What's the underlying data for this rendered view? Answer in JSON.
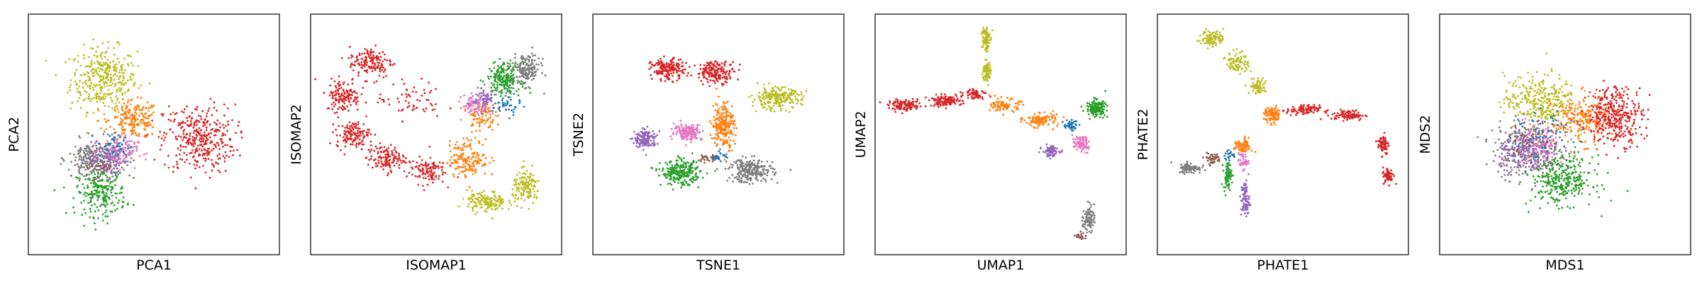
{
  "figure": {
    "panels": [
      {
        "id": "pca",
        "xlabel": "PCA1",
        "ylabel": "PCA2"
      },
      {
        "id": "isomap",
        "xlabel": "ISOMAP1",
        "ylabel": "ISOMAP2"
      },
      {
        "id": "tsne",
        "xlabel": "TSNE1",
        "ylabel": "TSNE2"
      },
      {
        "id": "umap",
        "xlabel": "UMAP1",
        "ylabel": "UMAP2"
      },
      {
        "id": "phate",
        "xlabel": "PHATE1",
        "ylabel": "PHATE2"
      },
      {
        "id": "mds",
        "xlabel": "MDS1",
        "ylabel": "MDS2"
      }
    ]
  },
  "chart_data": [
    {
      "type": "scatter",
      "xlabel": "PCA1",
      "ylabel": "PCA2",
      "xlim": [
        0,
        10
      ],
      "ylim": [
        0,
        10
      ],
      "ticks": "hidden",
      "legend": "none",
      "series": [
        {
          "color": "#bcbd22",
          "clusters": [
            {
              "cx": 3.0,
              "cy": 7.3,
              "sx": 1.2,
              "sy": 1.2,
              "n": 350
            }
          ]
        },
        {
          "color": "#ff7f0e",
          "clusters": [
            {
              "cx": 4.2,
              "cy": 5.6,
              "sx": 0.9,
              "sy": 0.7,
              "n": 200
            }
          ]
        },
        {
          "color": "#d62728",
          "clusters": [
            {
              "cx": 6.8,
              "cy": 4.8,
              "sx": 1.3,
              "sy": 1.3,
              "n": 350
            }
          ]
        },
        {
          "color": "#2ca02c",
          "clusters": [
            {
              "cx": 2.9,
              "cy": 2.6,
              "sx": 0.9,
              "sy": 0.9,
              "n": 230
            }
          ]
        },
        {
          "color": "#7f7f7f",
          "clusters": [
            {
              "cx": 2.6,
              "cy": 4.0,
              "sx": 0.9,
              "sy": 0.7,
              "n": 200
            }
          ]
        },
        {
          "color": "#9467bd",
          "clusters": [
            {
              "cx": 3.2,
              "cy": 4.0,
              "sx": 0.8,
              "sy": 0.7,
              "n": 130
            }
          ]
        },
        {
          "color": "#e377c2",
          "clusters": [
            {
              "cx": 3.6,
              "cy": 4.3,
              "sx": 0.7,
              "sy": 0.6,
              "n": 100
            }
          ]
        },
        {
          "color": "#1f77b4",
          "clusters": [
            {
              "cx": 3.4,
              "cy": 4.5,
              "sx": 0.6,
              "sy": 0.5,
              "n": 40
            }
          ]
        },
        {
          "color": "#8c564b",
          "clusters": [
            {
              "cx": 2.8,
              "cy": 3.7,
              "sx": 0.6,
              "sy": 0.5,
              "n": 40
            }
          ]
        }
      ]
    },
    {
      "type": "scatter",
      "xlabel": "ISOMAP1",
      "ylabel": "ISOMAP2",
      "xlim": [
        0,
        10
      ],
      "ylim": [
        0,
        10
      ],
      "ticks": "hidden",
      "legend": "none",
      "series": [
        {
          "color": "#d62728",
          "clusters": [
            {
              "cx": 2.4,
              "cy": 8.0,
              "sx": 0.8,
              "sy": 0.6,
              "n": 150
            },
            {
              "cx": 1.3,
              "cy": 6.6,
              "sx": 0.6,
              "sy": 0.6,
              "n": 130
            },
            {
              "cx": 1.7,
              "cy": 5.0,
              "sx": 0.6,
              "sy": 0.5,
              "n": 130
            },
            {
              "cx": 3.0,
              "cy": 4.0,
              "sx": 0.7,
              "sy": 0.5,
              "n": 130
            },
            {
              "cx": 4.6,
              "cy": 3.5,
              "sx": 0.7,
              "sy": 0.5,
              "n": 110
            },
            {
              "cx": 4.0,
              "cy": 6.4,
              "sx": 1.2,
              "sy": 0.7,
              "n": 60
            }
          ]
        },
        {
          "color": "#ff7f0e",
          "clusters": [
            {
              "cx": 6.3,
              "cy": 4.0,
              "sx": 0.7,
              "sy": 0.7,
              "n": 160
            },
            {
              "cx": 6.8,
              "cy": 5.8,
              "sx": 0.5,
              "sy": 0.6,
              "n": 90
            }
          ]
        },
        {
          "color": "#bcbd22",
          "clusters": [
            {
              "cx": 7.0,
              "cy": 2.2,
              "sx": 0.7,
              "sy": 0.4,
              "n": 150
            },
            {
              "cx": 8.6,
              "cy": 2.8,
              "sx": 0.5,
              "sy": 0.6,
              "n": 140
            }
          ]
        },
        {
          "color": "#2ca02c",
          "clusters": [
            {
              "cx": 7.7,
              "cy": 7.3,
              "sx": 0.6,
              "sy": 0.6,
              "n": 200
            }
          ]
        },
        {
          "color": "#7f7f7f",
          "clusters": [
            {
              "cx": 8.6,
              "cy": 7.7,
              "sx": 0.5,
              "sy": 0.6,
              "n": 170
            }
          ]
        },
        {
          "color": "#e377c2",
          "clusters": [
            {
              "cx": 6.6,
              "cy": 6.2,
              "sx": 0.5,
              "sy": 0.4,
              "n": 80
            }
          ]
        },
        {
          "color": "#9467bd",
          "clusters": [
            {
              "cx": 6.9,
              "cy": 6.5,
              "sx": 0.4,
              "sy": 0.4,
              "n": 60
            }
          ]
        },
        {
          "color": "#1f77b4",
          "clusters": [
            {
              "cx": 7.8,
              "cy": 6.2,
              "sx": 0.5,
              "sy": 0.4,
              "n": 40
            }
          ]
        }
      ]
    },
    {
      "type": "scatter",
      "xlabel": "TSNE1",
      "ylabel": "TSNE2",
      "xlim": [
        0,
        10
      ],
      "ylim": [
        0,
        10
      ],
      "ticks": "hidden",
      "legend": "none",
      "series": [
        {
          "color": "#d62728",
          "clusters": [
            {
              "cx": 3.0,
              "cy": 7.7,
              "sx": 0.6,
              "sy": 0.4,
              "n": 180
            },
            {
              "cx": 4.9,
              "cy": 7.6,
              "sx": 0.7,
              "sy": 0.4,
              "n": 180
            }
          ]
        },
        {
          "color": "#ff7f0e",
          "clusters": [
            {
              "cx": 5.2,
              "cy": 5.4,
              "sx": 0.4,
              "sy": 0.9,
              "n": 230
            }
          ]
        },
        {
          "color": "#bcbd22",
          "clusters": [
            {
              "cx": 7.3,
              "cy": 6.5,
              "sx": 0.9,
              "sy": 0.4,
              "n": 220
            }
          ]
        },
        {
          "color": "#e377c2",
          "clusters": [
            {
              "cx": 3.8,
              "cy": 5.1,
              "sx": 0.5,
              "sy": 0.3,
              "n": 170
            }
          ]
        },
        {
          "color": "#9467bd",
          "clusters": [
            {
              "cx": 2.1,
              "cy": 4.8,
              "sx": 0.4,
              "sy": 0.35,
              "n": 150
            }
          ]
        },
        {
          "color": "#2ca02c",
          "clusters": [
            {
              "cx": 3.5,
              "cy": 3.4,
              "sx": 0.7,
              "sy": 0.45,
              "n": 260
            }
          ]
        },
        {
          "color": "#7f7f7f",
          "clusters": [
            {
              "cx": 6.3,
              "cy": 3.5,
              "sx": 0.8,
              "sy": 0.45,
              "n": 240
            }
          ]
        },
        {
          "color": "#1f77b4",
          "clusters": [
            {
              "cx": 5.0,
              "cy": 4.1,
              "sx": 0.3,
              "sy": 0.2,
              "n": 30
            }
          ]
        },
        {
          "color": "#8c564b",
          "clusters": [
            {
              "cx": 4.6,
              "cy": 4.0,
              "sx": 0.3,
              "sy": 0.2,
              "n": 20
            }
          ]
        }
      ]
    },
    {
      "type": "scatter",
      "xlabel": "UMAP1",
      "ylabel": "UMAP2",
      "xlim": [
        0,
        10
      ],
      "ylim": [
        0,
        10
      ],
      "ticks": "hidden",
      "legend": "none",
      "series": [
        {
          "color": "#d62728",
          "clusters": [
            {
              "cx": 1.2,
              "cy": 6.2,
              "sx": 0.6,
              "sy": 0.2,
              "n": 120
            },
            {
              "cx": 2.8,
              "cy": 6.4,
              "sx": 0.6,
              "sy": 0.2,
              "n": 120
            },
            {
              "cx": 4.0,
              "cy": 6.7,
              "sx": 0.4,
              "sy": 0.2,
              "n": 60
            }
          ]
        },
        {
          "color": "#bcbd22",
          "clusters": [
            {
              "cx": 4.4,
              "cy": 9.0,
              "sx": 0.15,
              "sy": 0.5,
              "n": 100
            },
            {
              "cx": 4.45,
              "cy": 7.6,
              "sx": 0.15,
              "sy": 0.4,
              "n": 80
            }
          ]
        },
        {
          "color": "#ff7f0e",
          "clusters": [
            {
              "cx": 5.2,
              "cy": 6.2,
              "sx": 0.5,
              "sy": 0.25,
              "n": 90
            },
            {
              "cx": 6.6,
              "cy": 5.6,
              "sx": 0.6,
              "sy": 0.25,
              "n": 110
            }
          ]
        },
        {
          "color": "#2ca02c",
          "clusters": [
            {
              "cx": 8.8,
              "cy": 6.1,
              "sx": 0.35,
              "sy": 0.3,
              "n": 160
            }
          ]
        },
        {
          "color": "#9467bd",
          "clusters": [
            {
              "cx": 7.0,
              "cy": 4.3,
              "sx": 0.3,
              "sy": 0.2,
              "n": 90
            }
          ]
        },
        {
          "color": "#e377c2",
          "clusters": [
            {
              "cx": 8.2,
              "cy": 4.6,
              "sx": 0.3,
              "sy": 0.3,
              "n": 80
            }
          ]
        },
        {
          "color": "#1f77b4",
          "clusters": [
            {
              "cx": 7.8,
              "cy": 5.4,
              "sx": 0.25,
              "sy": 0.2,
              "n": 40
            }
          ]
        },
        {
          "color": "#7f7f7f",
          "clusters": [
            {
              "cx": 8.5,
              "cy": 1.5,
              "sx": 0.2,
              "sy": 0.5,
              "n": 90
            }
          ]
        },
        {
          "color": "#8c564b",
          "clusters": [
            {
              "cx": 8.2,
              "cy": 0.8,
              "sx": 0.2,
              "sy": 0.15,
              "n": 20
            }
          ]
        }
      ]
    },
    {
      "type": "scatter",
      "xlabel": "PHATE1",
      "ylabel": "PHATE2",
      "xlim": [
        0,
        10
      ],
      "ylim": [
        0,
        10
      ],
      "ticks": "hidden",
      "legend": "none",
      "series": [
        {
          "color": "#bcbd22",
          "clusters": [
            {
              "cx": 2.2,
              "cy": 9.0,
              "sx": 0.4,
              "sy": 0.3,
              "n": 100
            },
            {
              "cx": 3.2,
              "cy": 8.0,
              "sx": 0.4,
              "sy": 0.4,
              "n": 90
            },
            {
              "cx": 4.0,
              "cy": 7.0,
              "sx": 0.3,
              "sy": 0.3,
              "n": 70
            }
          ]
        },
        {
          "color": "#ff7f0e",
          "clusters": [
            {
              "cx": 4.6,
              "cy": 5.8,
              "sx": 0.3,
              "sy": 0.3,
              "n": 90
            },
            {
              "cx": 3.4,
              "cy": 4.5,
              "sx": 0.3,
              "sy": 0.3,
              "n": 80
            }
          ]
        },
        {
          "color": "#d62728",
          "clusters": [
            {
              "cx": 5.8,
              "cy": 6.0,
              "sx": 0.6,
              "sy": 0.2,
              "n": 90
            },
            {
              "cx": 7.6,
              "cy": 5.8,
              "sx": 0.6,
              "sy": 0.2,
              "n": 90
            },
            {
              "cx": 9.0,
              "cy": 4.6,
              "sx": 0.2,
              "sy": 0.4,
              "n": 70
            },
            {
              "cx": 9.2,
              "cy": 3.3,
              "sx": 0.2,
              "sy": 0.3,
              "n": 60
            }
          ]
        },
        {
          "color": "#7f7f7f",
          "clusters": [
            {
              "cx": 1.3,
              "cy": 3.6,
              "sx": 0.4,
              "sy": 0.2,
              "n": 90
            }
          ]
        },
        {
          "color": "#8c564b",
          "clusters": [
            {
              "cx": 2.2,
              "cy": 4.0,
              "sx": 0.3,
              "sy": 0.2,
              "n": 40
            }
          ]
        },
        {
          "color": "#2ca02c",
          "clusters": [
            {
              "cx": 2.8,
              "cy": 3.3,
              "sx": 0.15,
              "sy": 0.5,
              "n": 80
            }
          ]
        },
        {
          "color": "#9467bd",
          "clusters": [
            {
              "cx": 3.5,
              "cy": 2.3,
              "sx": 0.15,
              "sy": 0.7,
              "n": 90
            }
          ]
        },
        {
          "color": "#e377c2",
          "clusters": [
            {
              "cx": 3.4,
              "cy": 3.9,
              "sx": 0.2,
              "sy": 0.3,
              "n": 40
            }
          ]
        },
        {
          "color": "#1f77b4",
          "clusters": [
            {
              "cx": 2.9,
              "cy": 4.1,
              "sx": 0.2,
              "sy": 0.2,
              "n": 20
            }
          ]
        }
      ]
    },
    {
      "type": "scatter",
      "xlabel": "MDS1",
      "ylabel": "MDS2",
      "xlim": [
        0,
        10
      ],
      "ylim": [
        0,
        10
      ],
      "ticks": "hidden",
      "legend": "none",
      "series": [
        {
          "color": "#bcbd22",
          "clusters": [
            {
              "cx": 4.0,
              "cy": 6.4,
              "sx": 1.3,
              "sy": 1.0,
              "n": 320
            }
          ]
        },
        {
          "color": "#7f7f7f",
          "clusters": [
            {
              "cx": 3.3,
              "cy": 4.4,
              "sx": 1.1,
              "sy": 1.0,
              "n": 220
            }
          ]
        },
        {
          "color": "#9467bd",
          "clusters": [
            {
              "cx": 3.6,
              "cy": 4.2,
              "sx": 1.1,
              "sy": 0.9,
              "n": 200
            }
          ]
        },
        {
          "color": "#e377c2",
          "clusters": [
            {
              "cx": 4.0,
              "cy": 4.6,
              "sx": 1.0,
              "sy": 0.9,
              "n": 120
            }
          ]
        },
        {
          "color": "#2ca02c",
          "clusters": [
            {
              "cx": 4.9,
              "cy": 3.1,
              "sx": 1.1,
              "sy": 0.9,
              "n": 320
            }
          ]
        },
        {
          "color": "#ff7f0e",
          "clusters": [
            {
              "cx": 5.6,
              "cy": 5.6,
              "sx": 1.0,
              "sy": 0.9,
              "n": 200
            }
          ]
        },
        {
          "color": "#1f77b4",
          "clusters": [
            {
              "cx": 4.3,
              "cy": 5.0,
              "sx": 1.0,
              "sy": 0.8,
              "n": 60
            }
          ]
        },
        {
          "color": "#8c564b",
          "clusters": [
            {
              "cx": 3.6,
              "cy": 4.6,
              "sx": 0.9,
              "sy": 0.8,
              "n": 40
            }
          ]
        },
        {
          "color": "#d62728",
          "clusters": [
            {
              "cx": 7.0,
              "cy": 5.8,
              "sx": 1.0,
              "sy": 1.1,
              "n": 360
            }
          ]
        }
      ]
    }
  ]
}
